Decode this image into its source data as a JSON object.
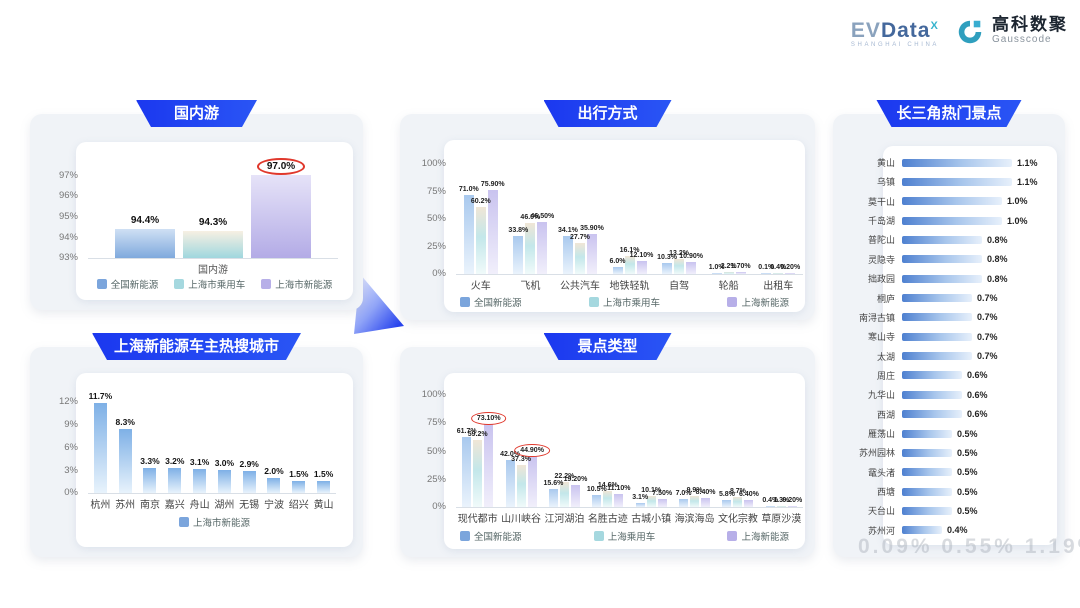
{
  "header": {
    "brand_ev": "EV",
    "brand_data": "Data",
    "brand_sup": "X",
    "brand_sub": "SHANGHAI CHINA",
    "brand_cn": "高科数聚",
    "brand_en": "Gausscode"
  },
  "watermark": "0.09% 0.55% 1.19%",
  "chart_data": [
    {
      "id": "domestic-travel",
      "type": "bar",
      "title": "国内游",
      "xlabel": "国内游",
      "ylim": [
        93,
        97.8
      ],
      "yticks": [
        93,
        94,
        95,
        96,
        97
      ],
      "ytick_labels": [
        "93%",
        "94%",
        "95%",
        "96%",
        "97%"
      ],
      "series": [
        {
          "name": "全国新能源",
          "cls": "s-blue",
          "value": 94.4,
          "label": "94.4%"
        },
        {
          "name": "上海市乘用车",
          "cls": "s-teal",
          "value": 94.3,
          "label": "94.3%"
        },
        {
          "name": "上海市新能源",
          "cls": "s-purple",
          "value": 97.0,
          "label": "97.0%",
          "circled": true
        }
      ]
    },
    {
      "id": "hot-cities",
      "type": "bar",
      "title": "上海新能源车主热搜城市",
      "legend": [
        "上海市新能源"
      ],
      "ylim": [
        0,
        13.8
      ],
      "yticks": [
        0,
        3,
        6,
        9,
        12
      ],
      "ytick_labels": [
        "0%",
        "3%",
        "6%",
        "9%",
        "12%"
      ],
      "categories": [
        "杭州",
        "苏州",
        "南京",
        "嘉兴",
        "舟山",
        "湖州",
        "无锡",
        "宁波",
        "绍兴",
        "黄山"
      ],
      "values": [
        11.7,
        8.3,
        3.3,
        3.2,
        3.1,
        3.0,
        2.9,
        2.0,
        1.5,
        1.5
      ],
      "labels": [
        "11.7%",
        "8.3%",
        "3.3%",
        "3.2%",
        "3.1%",
        "3.0%",
        "2.9%",
        "2.0%",
        "1.5%",
        "1.5%"
      ]
    },
    {
      "id": "travel-modes",
      "type": "grouped-bar",
      "title": "出行方式",
      "ylim": [
        0,
        108
      ],
      "yticks": [
        0,
        25,
        50,
        75,
        100
      ],
      "ytick_labels": [
        "0%",
        "25%",
        "50%",
        "75%",
        "100%"
      ],
      "categories": [
        "火车",
        "飞机",
        "公共汽车",
        "地铁轻轨",
        "自驾",
        "轮船",
        "出租车"
      ],
      "series": [
        {
          "name": "全国新能源",
          "cls": "s-blue",
          "values": [
            71.0,
            33.8,
            34.1,
            6.0,
            10.3,
            1.0,
            0.1
          ],
          "labels": [
            "71.0%",
            "33.8%",
            "34.1%",
            "6.0%",
            "10.3%",
            "1.0%",
            "0.1%"
          ]
        },
        {
          "name": "上海市乘用车",
          "cls": "s-teal",
          "values": [
            60.2,
            46.0,
            27.7,
            16.1,
            13.2,
            2.2,
            0.4
          ],
          "labels": [
            "60.2%",
            "46.0%",
            "27.7%",
            "16.1%",
            "13.2%",
            "2.2%",
            "0.4%"
          ]
        },
        {
          "name": "上海新能源",
          "cls": "s-purple",
          "values": [
            75.9,
            46.5,
            35.9,
            12.1,
            10.9,
            1.7,
            0.2
          ],
          "labels": [
            "75.90%",
            "46.50%",
            "35.90%",
            "12.10%",
            "10.90%",
            "1.70%",
            "0.20%"
          ]
        }
      ]
    },
    {
      "id": "attraction-types",
      "type": "grouped-bar",
      "title": "景点类型",
      "ylim": [
        0,
        108
      ],
      "yticks": [
        0,
        25,
        50,
        75,
        100
      ],
      "ytick_labels": [
        "0%",
        "25%",
        "50%",
        "75%",
        "100%"
      ],
      "categories": [
        "现代都市",
        "山川峡谷",
        "江河湖泊",
        "名胜古迹",
        "古城小镇",
        "海滨海岛",
        "文化宗教",
        "草原沙漠"
      ],
      "series": [
        {
          "name": "全国新能源",
          "cls": "s-blue",
          "values": [
            61.7,
            42.0,
            15.6,
            10.5,
            3.1,
            7.0,
            5.8,
            0.4
          ],
          "labels": [
            "61.7%",
            "42.0%",
            "15.6%",
            "10.5%",
            "3.1%",
            "7.0%",
            "5.8%",
            "0.4%"
          ]
        },
        {
          "name": "上海乘用车",
          "cls": "s-teal",
          "values": [
            59.2,
            37.3,
            22.2,
            14.6,
            10.1,
            9.9,
            8.7,
            1.3
          ],
          "labels": [
            "59.2%",
            "37.3%",
            "22.2%",
            "14.6%",
            "10.1%",
            "9.9%",
            "8.7%",
            "1.3%"
          ]
        },
        {
          "name": "上海新能源",
          "cls": "s-purple",
          "values": [
            73.1,
            44.9,
            19.2,
            11.1,
            7.5,
            8.4,
            6.4,
            0.2
          ],
          "labels": [
            "73.10%",
            "44.90%",
            "19.20%",
            "11.10%",
            "7.50%",
            "8.40%",
            "6.40%",
            "0.20%"
          ],
          "circled": [
            0,
            1
          ]
        }
      ]
    },
    {
      "id": "hot-attractions",
      "type": "hbar",
      "title": "长三角热门景点",
      "xmax": 1.15,
      "items": [
        {
          "label": "黄山",
          "value": 1.1,
          "text": "1.1%"
        },
        {
          "label": "乌镇",
          "value": 1.1,
          "text": "1.1%"
        },
        {
          "label": "莫干山",
          "value": 1.0,
          "text": "1.0%"
        },
        {
          "label": "千岛湖",
          "value": 1.0,
          "text": "1.0%"
        },
        {
          "label": "普陀山",
          "value": 0.8,
          "text": "0.8%"
        },
        {
          "label": "灵隐寺",
          "value": 0.8,
          "text": "0.8%"
        },
        {
          "label": "拙政园",
          "value": 0.8,
          "text": "0.8%"
        },
        {
          "label": "桐庐",
          "value": 0.7,
          "text": "0.7%"
        },
        {
          "label": "南浔古镇",
          "value": 0.7,
          "text": "0.7%"
        },
        {
          "label": "寒山寺",
          "value": 0.7,
          "text": "0.7%"
        },
        {
          "label": "太湖",
          "value": 0.7,
          "text": "0.7%"
        },
        {
          "label": "周庄",
          "value": 0.6,
          "text": "0.6%"
        },
        {
          "label": "九华山",
          "value": 0.6,
          "text": "0.6%"
        },
        {
          "label": "西湖",
          "value": 0.6,
          "text": "0.6%"
        },
        {
          "label": "雁荡山",
          "value": 0.5,
          "text": "0.5%"
        },
        {
          "label": "苏州园林",
          "value": 0.5,
          "text": "0.5%"
        },
        {
          "label": "鼋头渚",
          "value": 0.5,
          "text": "0.5%"
        },
        {
          "label": "西塘",
          "value": 0.5,
          "text": "0.5%"
        },
        {
          "label": "天台山",
          "value": 0.5,
          "text": "0.5%"
        },
        {
          "label": "苏州河",
          "value": 0.4,
          "text": "0.4%"
        }
      ]
    }
  ]
}
